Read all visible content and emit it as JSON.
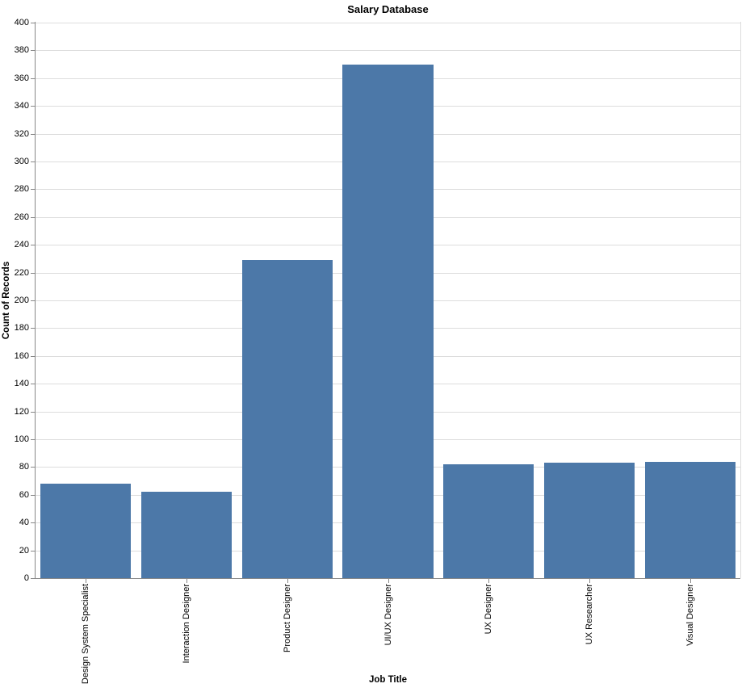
{
  "chart_data": {
    "type": "bar",
    "title": "Salary Database",
    "xlabel": "Job Title",
    "ylabel": "Count of Records",
    "categories": [
      "Design System Specialist",
      "Interaction Designer",
      "Product Designer",
      "UI/UX Designer",
      "UX Designer",
      "UX Researcher",
      "Visual Designer"
    ],
    "values": [
      68,
      62,
      229,
      370,
      82,
      83,
      84
    ],
    "ylim": [
      0,
      400
    ],
    "ytick_step": 20,
    "yticks": [
      0,
      20,
      40,
      60,
      80,
      100,
      120,
      140,
      160,
      180,
      200,
      220,
      240,
      260,
      280,
      300,
      320,
      340,
      360,
      380,
      400
    ],
    "grid": true,
    "legend": "none",
    "bar_color": "#4c78a8",
    "axis_color": "#888888",
    "grid_color": "#dddddd",
    "label_color": "#000000"
  }
}
